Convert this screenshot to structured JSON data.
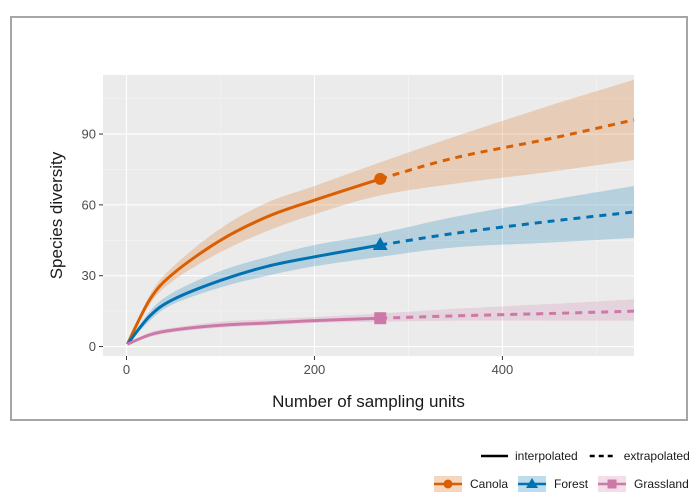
{
  "chart_data": {
    "type": "line",
    "title": "",
    "xlabel": "Number of sampling units",
    "ylabel": "Species diversity",
    "xlim": [
      -25,
      540
    ],
    "ylim": [
      -4,
      115
    ],
    "x_ticks": [
      0,
      200,
      400
    ],
    "y_ticks": [
      0,
      30,
      60,
      90
    ],
    "grid": true,
    "legend_position": "bottom-right",
    "observed_x": 270,
    "method_legend": [
      {
        "label": "interpolated",
        "style": "solid"
      },
      {
        "label": "extrapolated",
        "style": "dashed"
      }
    ],
    "series": [
      {
        "name": "Canola",
        "color": "#d95f02",
        "marker": "circle",
        "x": [
          1,
          25,
          50,
          100,
          150,
          200,
          270,
          350,
          450,
          540
        ],
        "y": [
          1,
          20,
          31,
          45,
          55,
          62,
          71,
          80,
          88,
          96
        ],
        "lower": [
          1,
          18,
          28,
          40,
          49,
          56,
          64,
          69,
          74,
          79
        ],
        "upper": [
          1,
          22,
          34,
          50,
          61,
          68,
          78,
          89,
          102,
          113
        ]
      },
      {
        "name": "Forest",
        "color": "#0072b2",
        "marker": "triangle",
        "x": [
          1,
          25,
          50,
          100,
          150,
          200,
          270,
          350,
          450,
          540
        ],
        "y": [
          1,
          13,
          20,
          28,
          34,
          38,
          43,
          48,
          53,
          57
        ],
        "lower": [
          1,
          11,
          18,
          25,
          30,
          34,
          38,
          42,
          44,
          46
        ],
        "upper": [
          1,
          15,
          23,
          32,
          38,
          43,
          48,
          55,
          62,
          68
        ]
      },
      {
        "name": "Grassland",
        "color": "#cc79a7",
        "marker": "square",
        "x": [
          1,
          25,
          50,
          100,
          150,
          200,
          270,
          350,
          450,
          540
        ],
        "y": [
          1,
          5,
          7,
          9,
          10,
          11,
          12,
          13,
          14,
          15
        ],
        "lower": [
          1,
          4,
          6,
          8,
          9,
          10,
          10.5,
          11,
          11,
          11
        ],
        "upper": [
          1,
          6,
          8,
          10.5,
          11.5,
          12.5,
          14,
          16,
          18,
          20
        ]
      }
    ]
  }
}
